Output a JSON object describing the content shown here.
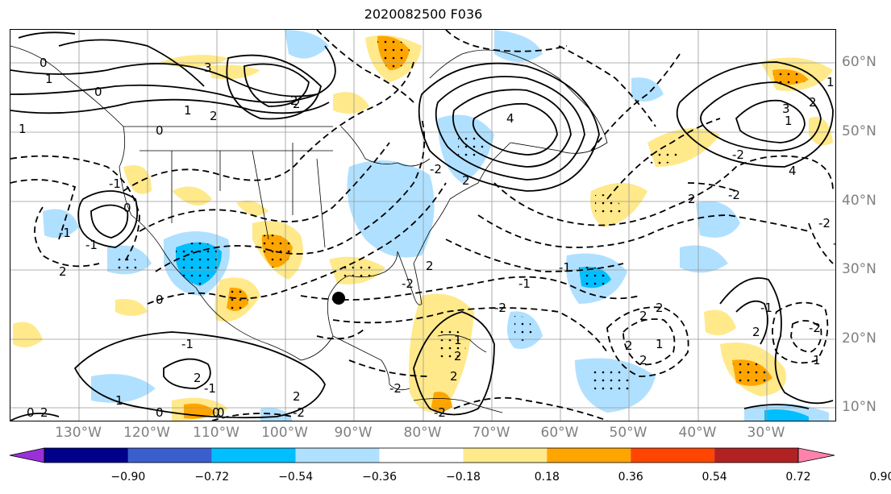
{
  "title": "2020082500 F036",
  "lat_labels": [
    "60°N",
    "50°N",
    "40°N",
    "30°N",
    "20°N",
    "10°N"
  ],
  "lon_labels": [
    "130°W",
    "120°W",
    "110°W",
    "100°W",
    "90°W",
    "80°W",
    "70°W",
    "60°W",
    "50°W",
    "40°W",
    "30°W"
  ],
  "colorbar": {
    "ticks": [
      "−0.90",
      "−0.72",
      "−0.54",
      "−0.36",
      "−0.18",
      "0.18",
      "0.36",
      "0.54",
      "0.72",
      "0.90"
    ],
    "colors": [
      "#9b30d9",
      "#00008b",
      "#3a5fcd",
      "#00bfff",
      "#b0e0ff",
      "#ffffff",
      "#ffe98a",
      "#ffa500",
      "#ff4500",
      "#b22222",
      "#ff82ab"
    ]
  },
  "contour_labels": [
    "0",
    "3",
    "1",
    "0",
    "2",
    "1",
    "2",
    "0",
    "2",
    "1",
    "-1",
    "0",
    "-1",
    "-1",
    "2",
    "0",
    "-1",
    "2",
    "-1",
    "2",
    "1",
    "0",
    "2",
    "1",
    "-2",
    "-2",
    "2",
    "-2",
    "2",
    "2",
    "-2",
    "2",
    "-1",
    "1",
    "1",
    "2",
    "-2",
    "4",
    "2",
    "-2",
    "-2",
    "1",
    "3",
    "4",
    "-2",
    "-2",
    "2",
    "1",
    "0",
    "-2",
    "0",
    "0",
    "2",
    "2",
    "-2",
    "-1",
    "2",
    "-1",
    "2"
  ],
  "marker": "storm-center-dot",
  "colors": {
    "positive": "#ffe98a",
    "positive_strong": "#ffa500",
    "negative": "#b0e0ff",
    "negative_strong": "#00bfff"
  }
}
